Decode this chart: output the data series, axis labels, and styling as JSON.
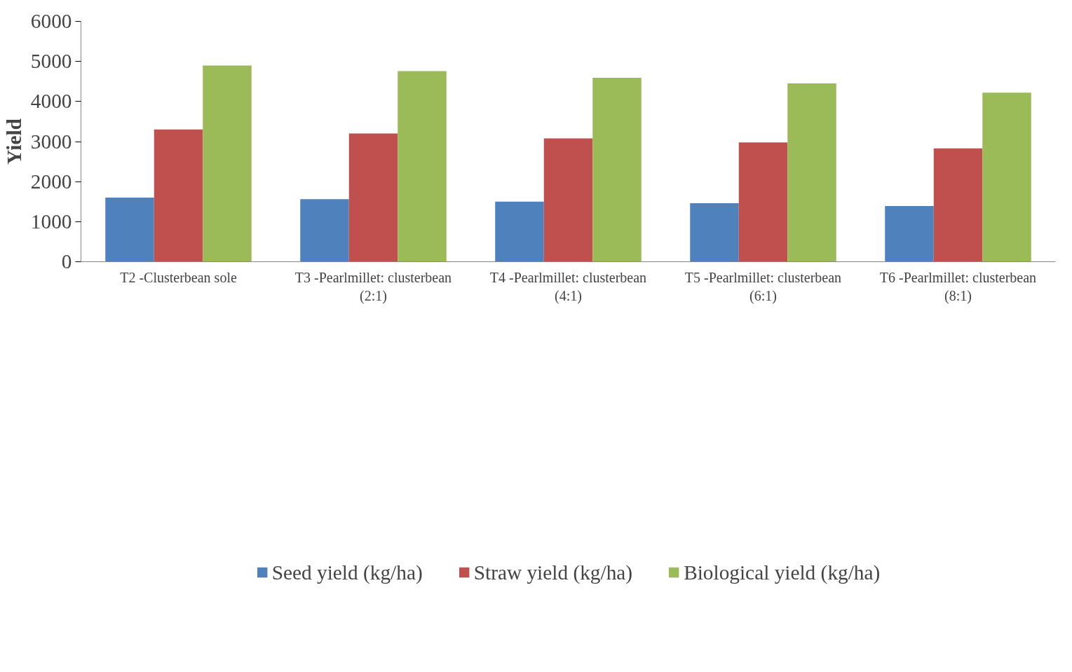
{
  "chart_data": {
    "type": "bar",
    "ylabel": "Yield",
    "categories": [
      "T2 -Clusterbean sole",
      "T3 -Pearlmillet: clusterbean\n(2:1)",
      "T4 -Pearlmillet: clusterbean\n(4:1)",
      "T5 -Pearlmillet: clusterbean\n(6:1)",
      "T6 -Pearlmillet: clusterbean\n(8:1)"
    ],
    "series": [
      {
        "name": "Seed yield (kg/ha)",
        "color": "#4f81bd",
        "values": [
          1600,
          1560,
          1500,
          1460,
          1390
        ]
      },
      {
        "name": "Straw yield (kg/ha)",
        "color": "#c0504d",
        "values": [
          3300,
          3200,
          3080,
          2980,
          2830
        ]
      },
      {
        "name": "Biological yield (kg/ha)",
        "color": "#9bbb59",
        "values": [
          4900,
          4760,
          4590,
          4450,
          4220
        ]
      }
    ],
    "ylim": [
      0,
      6000
    ],
    "yticks": [
      0,
      1000,
      2000,
      3000,
      4000,
      5000,
      6000
    ],
    "grid": false,
    "legend": "bottom"
  }
}
